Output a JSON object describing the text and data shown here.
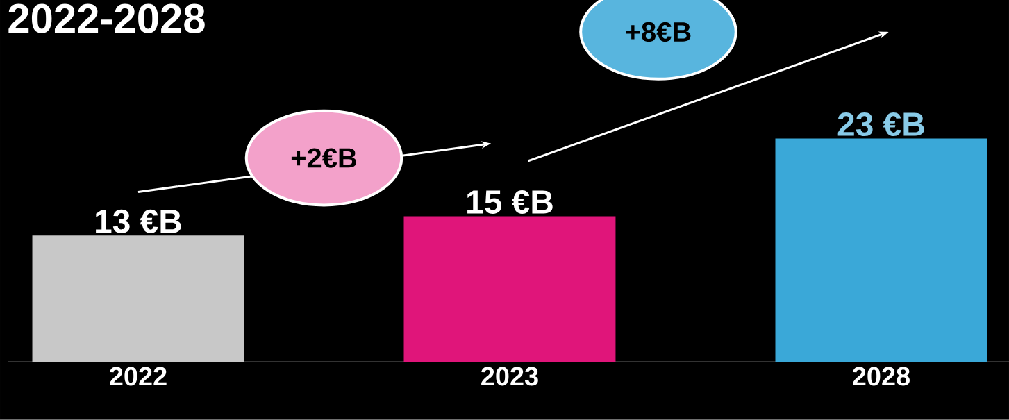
{
  "chart_data": {
    "type": "bar",
    "title": "2022-2028",
    "categories": [
      "2022",
      "2023",
      "2028"
    ],
    "values": [
      13,
      15,
      23
    ],
    "colors": [
      "#c8c8c8",
      "#e0157a",
      "#3aa8d8"
    ],
    "value_labels": [
      "13 €B",
      "15 €B",
      "23 €B"
    ],
    "annotations": [
      "+2€B",
      "+8€B"
    ]
  }
}
